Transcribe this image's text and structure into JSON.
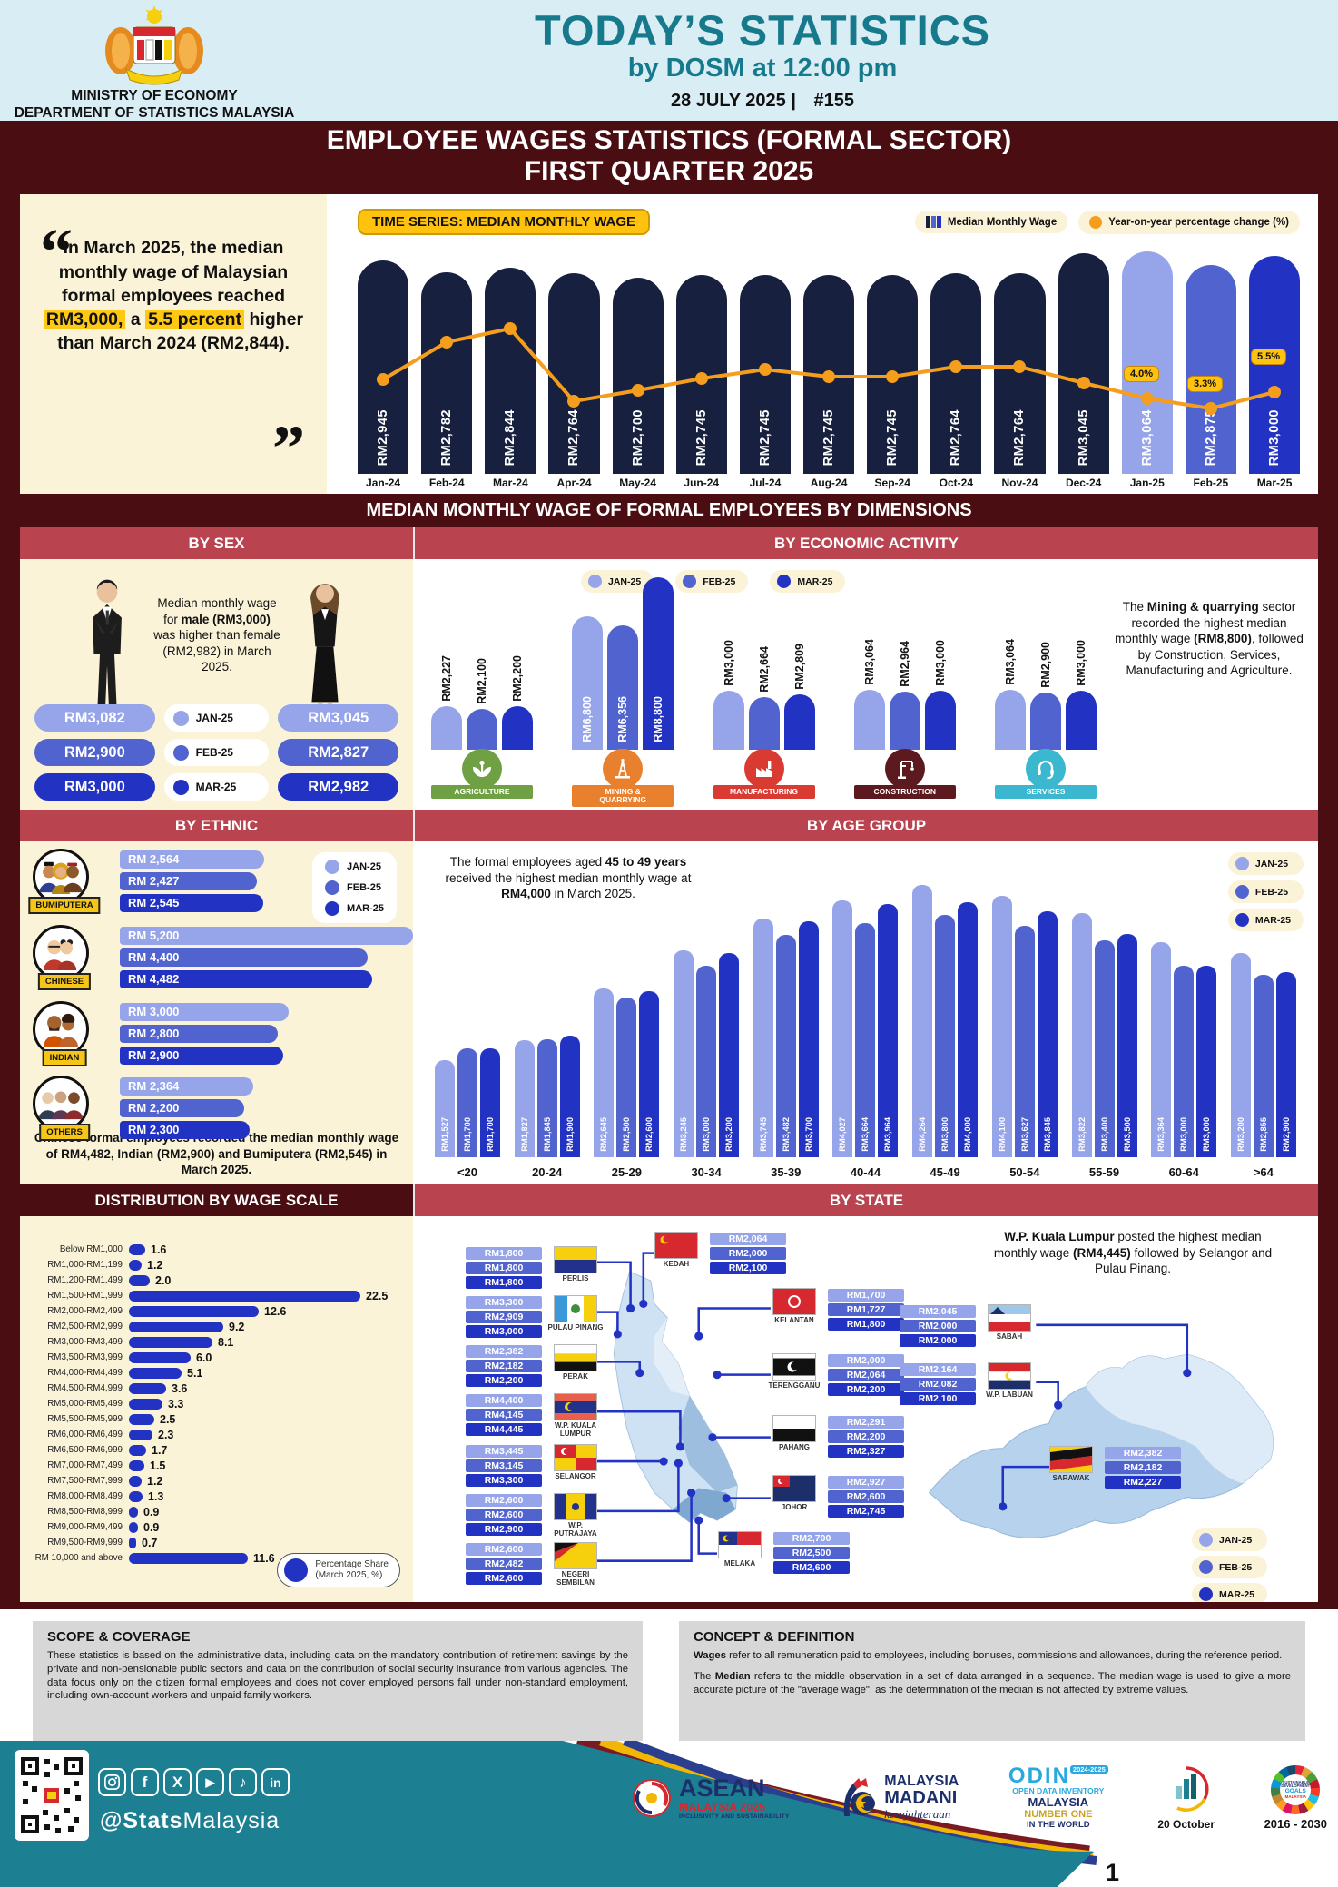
{
  "palette": {
    "navy_bar": "#17213f",
    "jan": "#96a4ea",
    "feb": "#5063cf",
    "mar": "#2233c4",
    "orange": "#f59e1d",
    "band_red": "#b9434f",
    "maroon": "#4a0d12",
    "cream": "#fbf3d7",
    "teal": "#1d7f92",
    "yellow": "#ffc20e"
  },
  "header": {
    "ministry_line1": "MINISTRY OF ECONOMY",
    "ministry_line2": "DEPARTMENT OF STATISTICS MALAYSIA",
    "title": "TODAY’S STATISTICS",
    "subtitle": "by DOSM at 12:00 pm",
    "date": "28 JULY 2025 |",
    "issue": "#155"
  },
  "title_band": {
    "line1": "EMPLOYEE WAGES STATISTICS (FORMAL SECTOR)",
    "line2": "FIRST QUARTER 2025"
  },
  "quote": {
    "part1": "In March 2025, the median monthly wage of Malaysian formal employees reached ",
    "hl1": "RM3,000,",
    "part2": " a ",
    "hl2": "5.5 percent",
    "part3": " higher than March 2024 (RM2,844)."
  },
  "time_series": {
    "tag": "TIME SERIES: MEDIAN MONTHLY WAGE",
    "legend_bar": "Median Monthly Wage",
    "legend_line": "Year-on-year percentage change (%)",
    "months": [
      "Jan-24",
      "Feb-24",
      "Mar-24",
      "Apr-24",
      "May-24",
      "Jun-24",
      "Jul-24",
      "Aug-24",
      "Sep-24",
      "Oct-24",
      "Nov-24",
      "Dec-24",
      "Jan-25",
      "Feb-25",
      "Mar-25"
    ],
    "values": [
      2945,
      2782,
      2844,
      2764,
      2700,
      2745,
      2745,
      2745,
      2745,
      2764,
      2764,
      3045,
      3064,
      2875,
      3000
    ],
    "labels": [
      "RM2,945",
      "RM2,782",
      "RM2,844",
      "RM2,764",
      "RM2,700",
      "RM2,745",
      "RM2,745",
      "RM2,745",
      "RM2,745",
      "RM2,764",
      "RM2,764",
      "RM3,045",
      "RM3,064",
      "RM2,875",
      "RM3,000"
    ],
    "pct_labels": [
      "4.0%",
      "3.3%",
      "5.5%"
    ]
  },
  "dimensions_band": "MEDIAN MONTHLY WAGE OF FORMAL EMPLOYEES BY DIMENSIONS",
  "by_sex": {
    "header": "BY SEX",
    "note_1": "Median monthly wage for ",
    "note_b1": "male",
    "note_2": " ",
    "note_b2": "(RM3,000)",
    "note_3": " was higher than female (RM2,982) in March 2025.",
    "legend": [
      "JAN-25",
      "FEB-25",
      "MAR-25"
    ],
    "male_labels": [
      "RM3,082",
      "RM2,900",
      "RM3,000"
    ],
    "female_labels": [
      "RM3,045",
      "RM2,827",
      "RM2,982"
    ]
  },
  "economic": {
    "header": "BY ECONOMIC ACTIVITY",
    "legend": [
      "JAN-25",
      "FEB-25",
      "MAR-25"
    ],
    "sectors": [
      {
        "id": "agriculture",
        "name_lines": [
          "AGRICULTURE"
        ],
        "color": "#6fa043",
        "values": [
          2227,
          2100,
          2200
        ],
        "labels": [
          "RM2,227",
          "RM2,100",
          "RM2,200"
        ]
      },
      {
        "id": "mining",
        "name_lines": [
          "MINING &",
          "QUARRYING"
        ],
        "color": "#e8802e",
        "values": [
          6800,
          6356,
          8800
        ],
        "labels": [
          "RM6,800",
          "RM6,356",
          "RM8,800"
        ]
      },
      {
        "id": "manufacturing",
        "name_lines": [
          "MANUFACTURING"
        ],
        "color": "#d93a32",
        "values": [
          3000,
          2664,
          2809
        ],
        "labels": [
          "RM3,000",
          "RM2,664",
          "RM2,809"
        ]
      },
      {
        "id": "construction",
        "name_lines": [
          "CONSTRUCTION"
        ],
        "color": "#5d1a1e",
        "values": [
          3064,
          2964,
          3000
        ],
        "labels": [
          "RM3,064",
          "RM2,964",
          "RM3,000"
        ]
      },
      {
        "id": "services",
        "name_lines": [
          "SERVICES"
        ],
        "color": "#3bb8cf",
        "values": [
          3064,
          2900,
          3000
        ],
        "labels": [
          "RM3,064",
          "RM2,900",
          "RM3,000"
        ]
      }
    ],
    "note_1": "The ",
    "note_b1": "Mining & quarrying",
    "note_2": " sector recorded the highest median monthly wage ",
    "note_b2": "(RM8,800)",
    "note_3": ", followed by Construction, Services, Manufacturing and Agriculture."
  },
  "ethnic": {
    "header": "BY ETHNIC",
    "legend": [
      "JAN-25",
      "FEB-25",
      "MAR-25"
    ],
    "groups": [
      {
        "name": "BUMIPUTERA",
        "labels": [
          "RM 2,564",
          "RM 2,427",
          "RM 2,545"
        ],
        "values": [
          2564,
          2427,
          2545
        ]
      },
      {
        "name": "CHINESE",
        "labels": [
          "RM 5,200",
          "RM 4,400",
          "RM 4,482"
        ],
        "values": [
          5200,
          4400,
          4482
        ]
      },
      {
        "name": "INDIAN",
        "labels": [
          "RM 3,000",
          "RM 2,800",
          "RM 2,900"
        ],
        "values": [
          3000,
          2800,
          2900
        ]
      },
      {
        "name": "OTHERS",
        "labels": [
          "RM 2,364",
          "RM 2,200",
          "RM 2,300"
        ],
        "values": [
          2364,
          2200,
          2300
        ]
      }
    ],
    "note": "Chinese formal employees recorded the median monthly wage of RM4,482, Indian (RM2,900) and Bumiputera (RM2,545) in March 2025."
  },
  "age": {
    "header": "BY AGE GROUP",
    "note_1": "The formal employees aged ",
    "note_b1": "45 to 49 years",
    "note_2": " received the highest median monthly wage at ",
    "note_b2": "RM4,000",
    "note_3": " in March 2025.",
    "legend": [
      "JAN-25",
      "FEB-25",
      "MAR-25"
    ],
    "categories": [
      "<20",
      "20-24",
      "25-29",
      "30-34",
      "35-39",
      "40-44",
      "45-49",
      "50-54",
      "55-59",
      "60-64",
      ">64"
    ],
    "jan": [
      1527,
      1827,
      2645,
      3245,
      3745,
      4027,
      4264,
      4100,
      3822,
      3364,
      3200
    ],
    "feb": [
      1700,
      1845,
      2500,
      3000,
      3482,
      3664,
      3800,
      3627,
      3400,
      3000,
      2855
    ],
    "mar": [
      1700,
      1900,
      2600,
      3200,
      3700,
      3964,
      4000,
      3845,
      3500,
      3000,
      2900
    ],
    "jan_labels": [
      "RM1,527",
      "RM1,827",
      "RM2,645",
      "RM3,245",
      "RM3,745",
      "RM4,027",
      "RM4,264",
      "RM4,100",
      "RM3,822",
      "RM3,364",
      "RM3,200"
    ],
    "feb_labels": [
      "RM1,700",
      "RM1,845",
      "RM2,500",
      "RM3,000",
      "RM3,482",
      "RM3,664",
      "RM3,800",
      "RM3,627",
      "RM3,400",
      "RM3,000",
      "RM2,855"
    ],
    "mar_labels": [
      "RM1,700",
      "RM1,900",
      "RM2,600",
      "RM3,200",
      "RM3,700",
      "RM3,964",
      "RM4,000",
      "RM3,845",
      "RM3,500",
      "RM3,000",
      "RM2,900"
    ]
  },
  "wage_scale": {
    "header": "DISTRIBUTION BY WAGE SCALE",
    "categories": [
      "Below RM1,000",
      "RM1,000-RM1,199",
      "RM1,200-RM1,499",
      "RM1,500-RM1,999",
      "RM2,000-RM2,499",
      "RM2,500-RM2,999",
      "RM3,000-RM3,499",
      "RM3,500-RM3,999",
      "RM4,000-RM4,499",
      "RM4,500-RM4,999",
      "RM5,000-RM5,499",
      "RM5,500-RM5,999",
      "RM6,000-RM6,499",
      "RM6,500-RM6,999",
      "RM7,000-RM7,499",
      "RM7,500-RM7,999",
      "RM8,000-RM8,499",
      "RM8,500-RM8,999",
      "RM9,000-RM9,499",
      "RM9,500-RM9,999",
      "RM 10,000 and above"
    ],
    "values": [
      1.6,
      1.2,
      2.0,
      22.5,
      12.6,
      9.2,
      8.1,
      6.0,
      5.1,
      3.6,
      3.3,
      2.5,
      2.3,
      1.7,
      1.5,
      1.2,
      1.3,
      0.9,
      0.9,
      0.7,
      11.6
    ],
    "value_labels": [
      "1.6",
      "1.2",
      "2.0",
      "22.5",
      "12.6",
      "9.2",
      "8.1",
      "6.0",
      "5.1",
      "3.6",
      "3.3",
      "2.5",
      "2.3",
      "1.7",
      "1.5",
      "1.2",
      "1.3",
      "0.9",
      "0.9",
      "0.7",
      "11.6"
    ],
    "legend_line1": "Percentage Share",
    "legend_line2": "(March 2025, %)"
  },
  "by_state": {
    "header": "BY STATE",
    "note_b1": "W.P. Kuala Lumpur",
    "note_1": " posted the highest median monthly wage ",
    "note_b2": "(RM4,445)",
    "note_2": " followed by Selangor and Pulau Pinang.",
    "legend": [
      "JAN-25",
      "FEB-25",
      "MAR-25"
    ],
    "states": [
      {
        "id": "perlis",
        "name": "PERLIS",
        "labels": [
          "RM1,800",
          "RM1,800",
          "RM1,800"
        ]
      },
      {
        "id": "pinang",
        "name": "PULAU PINANG",
        "labels": [
          "RM3,300",
          "RM2,909",
          "RM3,000"
        ]
      },
      {
        "id": "perak",
        "name": "PERAK",
        "labels": [
          "RM2,382",
          "RM2,182",
          "RM2,200"
        ]
      },
      {
        "id": "kl",
        "name": "W.P. KUALA LUMPUR",
        "labels": [
          "RM4,400",
          "RM4,145",
          "RM4,445"
        ]
      },
      {
        "id": "selangor",
        "name": "SELANGOR",
        "labels": [
          "RM3,445",
          "RM3,145",
          "RM3,300"
        ]
      },
      {
        "id": "putrajaya",
        "name": "W.P. PUTRAJAYA",
        "labels": [
          "RM2,600",
          "RM2,600",
          "RM2,900"
        ]
      },
      {
        "id": "n9",
        "name": "NEGERI SEMBILAN",
        "labels": [
          "RM2,600",
          "RM2,482",
          "RM2,600"
        ]
      },
      {
        "id": "kedah",
        "name": "KEDAH",
        "labels": [
          "RM2,064",
          "RM2,000",
          "RM2,100"
        ]
      },
      {
        "id": "kelantan",
        "name": "KELANTAN",
        "labels": [
          "RM1,700",
          "RM1,727",
          "RM1,800"
        ]
      },
      {
        "id": "terengganu",
        "name": "TERENGGANU",
        "labels": [
          "RM2,000",
          "RM2,064",
          "RM2,200"
        ]
      },
      {
        "id": "pahang",
        "name": "PAHANG",
        "labels": [
          "RM2,291",
          "RM2,200",
          "RM2,327"
        ]
      },
      {
        "id": "johor",
        "name": "JOHOR",
        "labels": [
          "RM2,927",
          "RM2,600",
          "RM2,745"
        ]
      },
      {
        "id": "melaka",
        "name": "MELAKA",
        "labels": [
          "RM2,700",
          "RM2,500",
          "RM2,600"
        ]
      },
      {
        "id": "sabah",
        "name": "SABAH",
        "labels": [
          "RM2,045",
          "RM2,000",
          "RM2,000"
        ]
      },
      {
        "id": "labuan",
        "name": "W.P. LABUAN",
        "labels": [
          "RM2,164",
          "RM2,082",
          "RM2,100"
        ]
      },
      {
        "id": "sarawak",
        "name": "SARAWAK",
        "labels": [
          "RM2,382",
          "RM2,182",
          "RM2,227"
        ]
      }
    ]
  },
  "scope": {
    "title": "SCOPE & COVERAGE",
    "body": "These statistics is based on the administrative data, including data on the mandatory contribution of retirement savings by the private and non-pensionable public sectors and data on the contribution of social security insurance from various agencies. The data focus only on the citizen formal employees and does not cover employed persons fall under non-standard employment, including own-account workers and unpaid family workers."
  },
  "concept": {
    "title": "CONCEPT & DEFINITION",
    "p1_bold": "Wages",
    "p1": " refer to all remuneration paid to employees, including bonuses, commissions and allowances, during the reference period.",
    "p2_pre": "The ",
    "p2_bold": "Median",
    "p2": " refers to the middle observation in a set of data arranged in a sequence. The median wage is used to give a more accurate picture of the \"average wage\", as the determination of the median is not affected by extreme values."
  },
  "footer": {
    "handle_bold": "@Stats",
    "handle_rest": "Malaysia",
    "socials": [
      "instagram",
      "facebook",
      "x",
      "youtube",
      "tiktok",
      "linkedin"
    ],
    "asean": {
      "l1": "ASEAN",
      "l2": "MALAYSIA 2025",
      "l3": "INCLUSIVITY AND SUSTAINABILITY"
    },
    "madani": {
      "l1": "MALAYSIA",
      "l2": "MADANI",
      "l3": "kesejahteraan"
    },
    "odin": {
      "l1": "ODIN",
      "badge": "2024-2025",
      "l2": "OPEN DATA INVENTORY",
      "l3": "MALAYSIA",
      "l4": "NUMBER ONE",
      "l5": "IN THE WORLD"
    },
    "mystats": {
      "label": "20 October"
    },
    "sdg": {
      "a1": "SUSTAINABLE",
      "a2": "DEVELOPMENT",
      "b": "GOALS",
      "c": "MALAYSIA",
      "years": "2016 - 2030"
    },
    "page": "1"
  },
  "chart_data": [
    {
      "type": "bar",
      "id": "time_series_median_monthly_wage",
      "title": "TIME SERIES: MEDIAN MONTHLY WAGE",
      "categories": [
        "Jan-24",
        "Feb-24",
        "Mar-24",
        "Apr-24",
        "May-24",
        "Jun-24",
        "Jul-24",
        "Aug-24",
        "Sep-24",
        "Oct-24",
        "Nov-24",
        "Dec-24",
        "Jan-25",
        "Feb-25",
        "Mar-25"
      ],
      "series": [
        {
          "name": "Median Monthly Wage (RM)",
          "values": [
            2945,
            2782,
            2844,
            2764,
            2700,
            2745,
            2745,
            2745,
            2745,
            2764,
            2764,
            3045,
            3064,
            2875,
            3000
          ]
        },
        {
          "name": "Year-on-year percentage change (%)",
          "values": [
            null,
            null,
            null,
            null,
            null,
            null,
            null,
            null,
            null,
            null,
            null,
            null,
            4.0,
            3.3,
            5.5
          ]
        }
      ],
      "legend_position": "top-right"
    },
    {
      "type": "bar",
      "id": "by_sex",
      "categories": [
        "JAN-25",
        "FEB-25",
        "MAR-25"
      ],
      "series": [
        {
          "name": "Male",
          "values": [
            3082,
            2900,
            3000
          ]
        },
        {
          "name": "Female",
          "values": [
            3045,
            2827,
            2982
          ]
        }
      ]
    },
    {
      "type": "bar",
      "id": "by_economic_activity",
      "categories": [
        "AGRICULTURE",
        "MINING & QUARRYING",
        "MANUFACTURING",
        "CONSTRUCTION",
        "SERVICES"
      ],
      "series": [
        {
          "name": "JAN-25",
          "values": [
            2227,
            6800,
            3000,
            3064,
            3064
          ]
        },
        {
          "name": "FEB-25",
          "values": [
            2100,
            6356,
            2664,
            2964,
            2900
          ]
        },
        {
          "name": "MAR-25",
          "values": [
            2200,
            8800,
            2809,
            3000,
            3000
          ]
        }
      ]
    },
    {
      "type": "bar",
      "id": "by_ethnic",
      "orientation": "horizontal",
      "categories": [
        "BUMIPUTERA",
        "CHINESE",
        "INDIAN",
        "OTHERS"
      ],
      "series": [
        {
          "name": "JAN-25",
          "values": [
            2564,
            5200,
            3000,
            2364
          ]
        },
        {
          "name": "FEB-25",
          "values": [
            2427,
            4400,
            2800,
            2200
          ]
        },
        {
          "name": "MAR-25",
          "values": [
            2545,
            4482,
            2900,
            2300
          ]
        }
      ]
    },
    {
      "type": "bar",
      "id": "by_age_group",
      "categories": [
        "<20",
        "20-24",
        "25-29",
        "30-34",
        "35-39",
        "40-44",
        "45-49",
        "50-54",
        "55-59",
        "60-64",
        ">64"
      ],
      "series": [
        {
          "name": "JAN-25",
          "values": [
            1527,
            1827,
            2645,
            3245,
            3745,
            4027,
            4264,
            4100,
            3822,
            3364,
            3200
          ]
        },
        {
          "name": "FEB-25",
          "values": [
            1700,
            1845,
            2500,
            3000,
            3482,
            3664,
            3800,
            3627,
            3400,
            3000,
            2855
          ]
        },
        {
          "name": "MAR-25",
          "values": [
            1700,
            1900,
            2600,
            3200,
            3700,
            3964,
            4000,
            3845,
            3500,
            3000,
            2900
          ]
        }
      ]
    },
    {
      "type": "bar",
      "id": "distribution_by_wage_scale",
      "orientation": "horizontal",
      "title": "Percentage Share (March 2025, %)",
      "categories": [
        "Below RM1,000",
        "RM1,000-RM1,199",
        "RM1,200-RM1,499",
        "RM1,500-RM1,999",
        "RM2,000-RM2,499",
        "RM2,500-RM2,999",
        "RM3,000-RM3,499",
        "RM3,500-RM3,999",
        "RM4,000-RM4,499",
        "RM4,500-RM4,999",
        "RM5,000-RM5,499",
        "RM5,500-RM5,999",
        "RM6,000-RM6,499",
        "RM6,500-RM6,999",
        "RM7,000-RM7,499",
        "RM7,500-RM7,999",
        "RM8,000-RM8,499",
        "RM8,500-RM8,999",
        "RM9,000-RM9,499",
        "RM9,500-RM9,999",
        "RM 10,000 and above"
      ],
      "values": [
        1.6,
        1.2,
        2.0,
        22.5,
        12.6,
        9.2,
        8.1,
        6.0,
        5.1,
        3.6,
        3.3,
        2.5,
        2.3,
        1.7,
        1.5,
        1.2,
        1.3,
        0.9,
        0.9,
        0.7,
        11.6
      ]
    },
    {
      "type": "table",
      "id": "by_state_median_monthly_wage",
      "columns": [
        "State",
        "JAN-25",
        "FEB-25",
        "MAR-25"
      ],
      "rows": [
        [
          "PERLIS",
          1800,
          1800,
          1800
        ],
        [
          "PULAU PINANG",
          3300,
          2909,
          3000
        ],
        [
          "PERAK",
          2382,
          2182,
          2200
        ],
        [
          "W.P. KUALA LUMPUR",
          4400,
          4145,
          4445
        ],
        [
          "SELANGOR",
          3445,
          3145,
          3300
        ],
        [
          "W.P. PUTRAJAYA",
          2600,
          2600,
          2900
        ],
        [
          "NEGERI SEMBILAN",
          2600,
          2482,
          2600
        ],
        [
          "KEDAH",
          2064,
          2000,
          2100
        ],
        [
          "KELANTAN",
          1700,
          1727,
          1800
        ],
        [
          "TERENGGANU",
          2000,
          2064,
          2200
        ],
        [
          "PAHANG",
          2291,
          2200,
          2327
        ],
        [
          "JOHOR",
          2927,
          2600,
          2745
        ],
        [
          "MELAKA",
          2700,
          2500,
          2600
        ],
        [
          "SABAH",
          2045,
          2000,
          2000
        ],
        [
          "W.P. LABUAN",
          2164,
          2082,
          2100
        ],
        [
          "SARAWAK",
          2382,
          2182,
          2227
        ]
      ]
    }
  ]
}
